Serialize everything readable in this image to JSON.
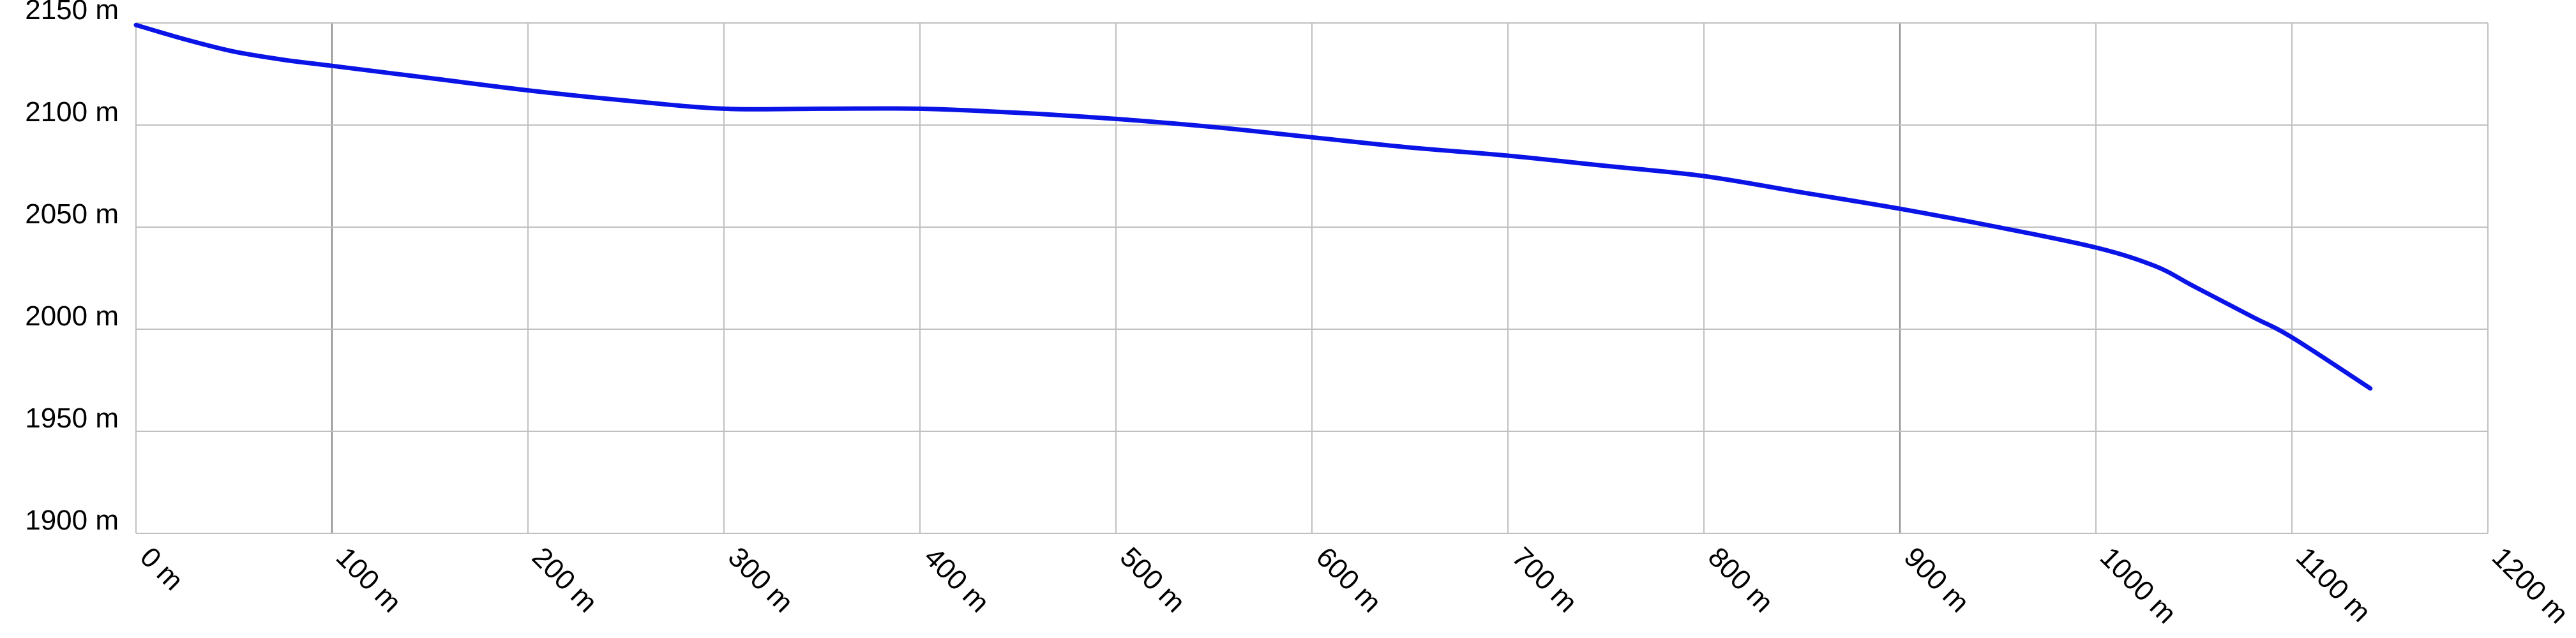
{
  "colors": {
    "line": "#0a14e6",
    "grid": "#c0c0c0",
    "grid_major": "#8a8a8a",
    "text": "#000000",
    "background": "#ffffff"
  },
  "chart_data": {
    "type": "line",
    "title": "",
    "xlabel": "",
    "ylabel": "",
    "xlim": [
      0,
      1200
    ],
    "ylim": [
      1900,
      2150
    ],
    "grid": true,
    "x_ticks": [
      0,
      100,
      200,
      300,
      400,
      500,
      600,
      700,
      800,
      900,
      1000,
      1100,
      1200
    ],
    "x_tick_labels": [
      "0 m",
      "100 m",
      "200 m",
      "300 m",
      "400 m",
      "500 m",
      "600 m",
      "700 m",
      "800 m",
      "900 m",
      "1000 m",
      "1100 m",
      "1200 m"
    ],
    "y_ticks": [
      1900,
      1950,
      2000,
      2050,
      2100,
      2150
    ],
    "y_tick_labels": [
      "1900 m",
      "1950 m",
      "2000 m",
      "2050 m",
      "2100 m",
      "2150 m"
    ],
    "series": [
      {
        "x": [
          0,
          25,
          50,
          75,
          100,
          150,
          200,
          250,
          300,
          350,
          400,
          450,
          500,
          550,
          600,
          650,
          700,
          750,
          800,
          850,
          900,
          950,
          1000,
          1030,
          1050,
          1080,
          1100,
          1140
        ],
        "y": [
          2149,
          2142,
          2136,
          2132,
          2129,
          2123,
          2117,
          2112,
          2108,
          2108,
          2108,
          2106,
          2103,
          2099,
          2094,
          2089,
          2085,
          2080,
          2075,
          2067,
          2059,
          2050,
          2040,
          2031,
          2021,
          2006,
          1996,
          1971
        ]
      }
    ]
  }
}
